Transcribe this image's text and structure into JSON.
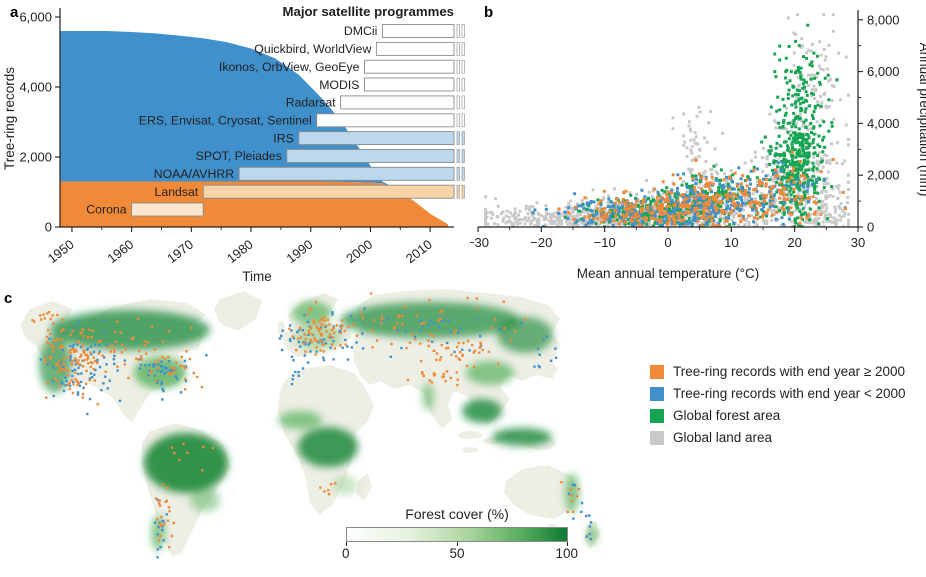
{
  "colors": {
    "orange": "#f08a39",
    "blue": "#4090cb",
    "green": "#14a452",
    "gray": "#c9c9c9",
    "lightblue": "#bcd8ec",
    "lightorange": "#f8d3a6",
    "paleorange": "#fbe7cd",
    "bar_stroke": "#8a8a8a",
    "axis": "#231f20",
    "map_land": "#edeee4",
    "map_green_dark": "#1d8a3c",
    "map_green_mid": "#57b25e",
    "map_green_light": "#a5d39c"
  },
  "chart_data": [
    {
      "label": "a",
      "type": "area+bars",
      "title": "Major satellite programmes",
      "xlabel": "Time",
      "ylabel": "Tree-ring records",
      "xlim": [
        1948,
        2014
      ],
      "ylim": [
        0,
        6200
      ],
      "xticks": [
        1950,
        1960,
        1970,
        1980,
        1990,
        2000,
        2010
      ],
      "yticks": [
        0,
        2000,
        4000,
        6000
      ],
      "ytick_labels": [
        "0",
        "2,000",
        "4,000",
        "6,000"
      ],
      "years": [
        1948,
        1956,
        1960,
        1964,
        1968,
        1972,
        1976,
        1980,
        1984,
        1988,
        1992,
        1995,
        1998,
        2000,
        2002,
        2004,
        2006,
        2008,
        2010,
        2013
      ],
      "total": [
        5600,
        5600,
        5570,
        5530,
        5470,
        5390,
        5280,
        5100,
        4820,
        4350,
        3650,
        3050,
        2280,
        1750,
        1300,
        1120,
        900,
        650,
        380,
        80
      ],
      "orange": [
        1300,
        1300,
        1300,
        1300,
        1300,
        1300,
        1300,
        1300,
        1300,
        1300,
        1300,
        1290,
        1280,
        1270,
        1250,
        1100,
        900,
        650,
        380,
        80
      ],
      "satellites": [
        {
          "name": "DMCii",
          "start": 2002,
          "end": null,
          "fill": "white"
        },
        {
          "name": "Quickbird, WorldView",
          "start": 2001,
          "end": null,
          "fill": "white"
        },
        {
          "name": "Ikonos, OrbView, GeoEye",
          "start": 1999,
          "end": null,
          "fill": "white"
        },
        {
          "name": "MODIS",
          "start": 1999,
          "end": null,
          "fill": "white"
        },
        {
          "name": "Radarsat",
          "start": 1995,
          "end": null,
          "fill": "white"
        },
        {
          "name": "ERS, Envisat, Cryosat, Sentinel",
          "start": 1991,
          "end": null,
          "fill": "white"
        },
        {
          "name": "IRS",
          "start": 1988,
          "end": null,
          "fill": "lightblue"
        },
        {
          "name": "SPOT, Pleiades",
          "start": 1986,
          "end": null,
          "fill": "lightblue"
        },
        {
          "name": "NOAA/AVHRR",
          "start": 1978,
          "end": null,
          "fill": "lightblue"
        },
        {
          "name": "Landsat",
          "start": 1972,
          "end": null,
          "fill": "lightorange"
        },
        {
          "name": "Corona",
          "start": 1960,
          "end": 1972,
          "fill": "paleorange"
        }
      ]
    },
    {
      "label": "b",
      "type": "scatter",
      "xlabel": "Mean annual temperature (°C)",
      "ylabel": "Annual precipitation (mm)",
      "xlim": [
        -30,
        30
      ],
      "ylim": [
        0,
        8300
      ],
      "xticks": [
        -30,
        -20,
        -10,
        0,
        10,
        20,
        30
      ],
      "xtick_labels": [
        "−30",
        "−20",
        "−10",
        "0",
        "10",
        "20",
        "30"
      ],
      "yticks": [
        0,
        2000,
        4000,
        6000,
        8000
      ],
      "ytick_labels": [
        "0",
        "2,000",
        "4,000",
        "6,000",
        "8,000"
      ],
      "point_size": 3,
      "series": [
        {
          "name": "Global land area",
          "color_key": "gray",
          "clusters": [
            {
              "cx": -14,
              "cy": 350,
              "sx": 8,
              "sy": 280,
              "n": 400
            },
            {
              "cx": 2,
              "cy": 600,
              "sx": 7,
              "sy": 450,
              "n": 280
            },
            {
              "cx": 8,
              "cy": 1200,
              "sx": 6,
              "sy": 700,
              "n": 160
            },
            {
              "cx": 4.5,
              "cy": 3000,
              "sx": 1.8,
              "sy": 1200,
              "n": 60
            },
            {
              "cx": 21,
              "cy": 1800,
              "sx": 4,
              "sy": 1100,
              "n": 240
            },
            {
              "cx": 23,
              "cy": 5200,
              "sx": 2.5,
              "sy": 1500,
              "n": 100
            },
            {
              "cx": 25,
              "cy": 400,
              "sx": 2,
              "sy": 300,
              "n": 70
            }
          ]
        },
        {
          "name": "Global forest area",
          "color_key": "green",
          "clusters": [
            {
              "cx": -3,
              "cy": 550,
              "sx": 5,
              "sy": 260,
              "n": 220
            },
            {
              "cx": 7,
              "cy": 1100,
              "sx": 4,
              "sy": 450,
              "n": 160
            },
            {
              "cx": 20.5,
              "cy": 2200,
              "sx": 2.2,
              "sy": 1000,
              "n": 320
            },
            {
              "cx": 21,
              "cy": 4800,
              "sx": 2,
              "sy": 1200,
              "n": 140
            }
          ]
        },
        {
          "name": "Tree-ring records with end year < 2000",
          "color_key": "blue",
          "clusters": [
            {
              "cx": -6,
              "cy": 500,
              "sx": 6,
              "sy": 280,
              "n": 160
            },
            {
              "cx": 6,
              "cy": 900,
              "sx": 5,
              "sy": 450,
              "n": 200
            },
            {
              "cx": 16,
              "cy": 1400,
              "sx": 4,
              "sy": 650,
              "n": 70
            }
          ]
        },
        {
          "name": "Tree-ring records with end year ≥ 2000",
          "color_key": "orange",
          "clusters": [
            {
              "cx": -2,
              "cy": 600,
              "sx": 6,
              "sy": 300,
              "n": 180
            },
            {
              "cx": 9,
              "cy": 1000,
              "sx": 5,
              "sy": 500,
              "n": 150
            },
            {
              "cx": 19,
              "cy": 1400,
              "sx": 3,
              "sy": 600,
              "n": 70
            }
          ]
        }
      ]
    },
    {
      "label": "c",
      "type": "map",
      "tree_ring_clusters": {
        "blue": [
          {
            "cx": 80,
            "cy": 80,
            "sx": 18,
            "sy": 18,
            "n": 80
          },
          {
            "cx": 165,
            "cy": 85,
            "sx": 16,
            "sy": 10,
            "n": 45
          },
          {
            "cx": 312,
            "cy": 52,
            "sx": 18,
            "sy": 12,
            "n": 55
          },
          {
            "cx": 430,
            "cy": 45,
            "sx": 50,
            "sy": 12,
            "n": 35
          },
          {
            "cx": 545,
            "cy": 70,
            "sx": 8,
            "sy": 8,
            "n": 10
          },
          {
            "cx": 160,
            "cy": 245,
            "sx": 5,
            "sy": 14,
            "n": 14
          },
          {
            "cx": 590,
            "cy": 250,
            "sx": 4,
            "sy": 8,
            "n": 6
          },
          {
            "cx": 574,
            "cy": 215,
            "sx": 5,
            "sy": 10,
            "n": 7
          },
          {
            "cx": 295,
            "cy": 88,
            "sx": 8,
            "sy": 5,
            "n": 8
          }
        ],
        "orange": [
          {
            "cx": 70,
            "cy": 75,
            "sx": 16,
            "sy": 20,
            "n": 110
          },
          {
            "cx": 45,
            "cy": 35,
            "sx": 10,
            "sy": 6,
            "n": 15
          },
          {
            "cx": 120,
            "cy": 60,
            "sx": 25,
            "sy": 12,
            "n": 35
          },
          {
            "cx": 168,
            "cy": 82,
            "sx": 14,
            "sy": 10,
            "n": 30
          },
          {
            "cx": 315,
            "cy": 48,
            "sx": 16,
            "sy": 12,
            "n": 70
          },
          {
            "cx": 420,
            "cy": 40,
            "sx": 55,
            "sy": 12,
            "n": 55
          },
          {
            "cx": 460,
            "cy": 68,
            "sx": 18,
            "sy": 8,
            "n": 30
          },
          {
            "cx": 440,
            "cy": 92,
            "sx": 14,
            "sy": 5,
            "n": 18
          },
          {
            "cx": 163,
            "cy": 235,
            "sx": 5,
            "sy": 18,
            "n": 22
          },
          {
            "cx": 200,
            "cy": 165,
            "sx": 18,
            "sy": 10,
            "n": 8
          },
          {
            "cx": 330,
            "cy": 200,
            "sx": 10,
            "sy": 8,
            "n": 6
          },
          {
            "cx": 570,
            "cy": 210,
            "sx": 6,
            "sy": 12,
            "n": 8
          }
        ]
      }
    }
  ],
  "legend": {
    "items": [
      {
        "label": "Tree-ring records with end year ≥ 2000",
        "color_key": "orange"
      },
      {
        "label": "Tree-ring records with end year < 2000",
        "color_key": "blue"
      },
      {
        "label": "Global forest area",
        "color_key": "green"
      },
      {
        "label": "Global land area",
        "color_key": "gray"
      }
    ]
  },
  "colorbar": {
    "title": "Forest cover (%)",
    "tick_labels": [
      "0",
      "50",
      "100"
    ]
  }
}
